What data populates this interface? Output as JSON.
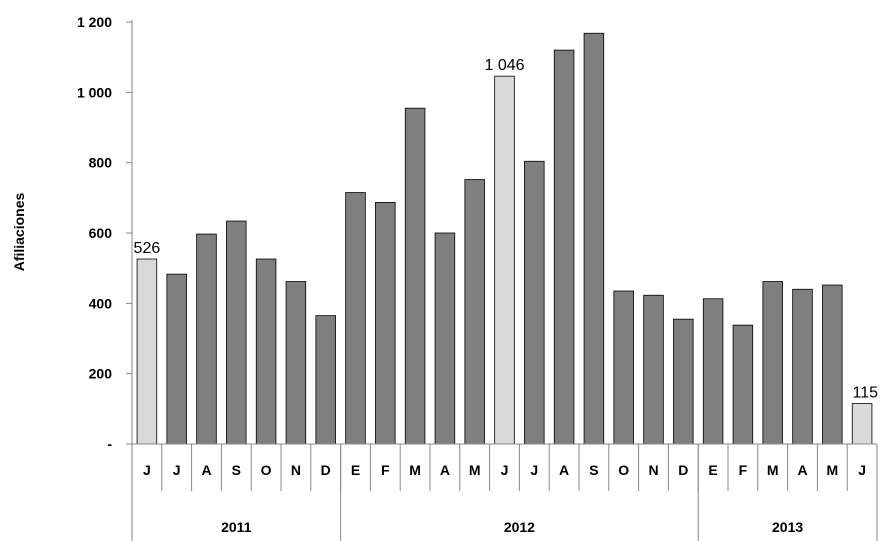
{
  "chart_data": {
    "type": "bar",
    "title": "",
    "xlabel": "",
    "ylabel": "Afiliaciones",
    "ylim": [
      0,
      1200
    ],
    "y_ticks": [
      {
        "value": 0,
        "label": "-"
      },
      {
        "value": 200,
        "label": "200"
      },
      {
        "value": 400,
        "label": "400"
      },
      {
        "value": 600,
        "label": "600"
      },
      {
        "value": 800,
        "label": "800"
      },
      {
        "value": 1000,
        "label": "1 000"
      },
      {
        "value": 1200,
        "label": "1 200"
      }
    ],
    "grid": false,
    "legend": "none",
    "categories": [
      "J",
      "J",
      "A",
      "S",
      "O",
      "N",
      "D",
      "E",
      "F",
      "M",
      "A",
      "M",
      "J",
      "J",
      "A",
      "S",
      "O",
      "N",
      "D",
      "E",
      "F",
      "M",
      "A",
      "M",
      "J"
    ],
    "values": [
      526,
      483,
      597,
      634,
      526,
      462,
      365,
      715,
      687,
      955,
      600,
      752,
      1046,
      804,
      1120,
      1168,
      435,
      423,
      355,
      413,
      338,
      462,
      440,
      452,
      115
    ],
    "highlight_indices": [
      0,
      12,
      24
    ],
    "data_labels": [
      {
        "index": 0,
        "text": "526"
      },
      {
        "index": 12,
        "text": "1 046"
      },
      {
        "index": 24,
        "text": "115"
      }
    ],
    "groups": [
      {
        "label": "2011",
        "start": 0,
        "count": 7
      },
      {
        "label": "2012",
        "start": 7,
        "count": 12
      },
      {
        "label": "2013",
        "start": 19,
        "count": 6
      }
    ],
    "colors": {
      "bar": "#7f7f7f",
      "highlight": "#d9d9d9",
      "bar_edge": "#000000",
      "axis": "#888888"
    }
  }
}
